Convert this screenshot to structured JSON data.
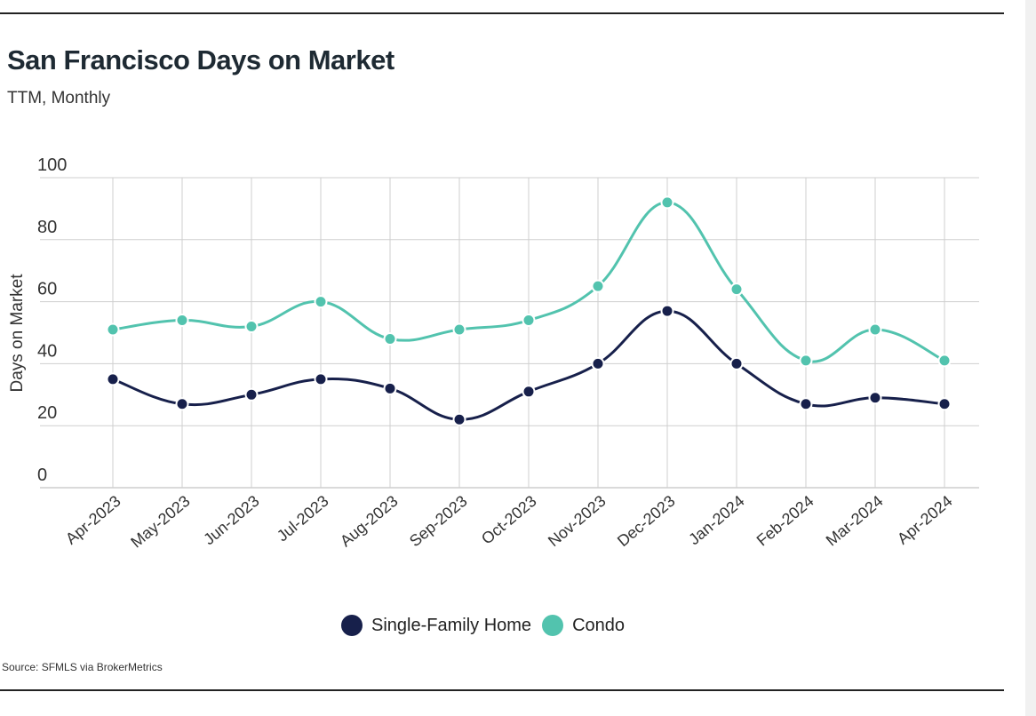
{
  "header": {
    "title": "San Francisco Days on Market",
    "subtitle": "TTM, Monthly"
  },
  "footer": {
    "source": "Source:  SFMLS via BrokerMetrics"
  },
  "colors": {
    "single_family": "#17204b",
    "condo": "#52c3ae",
    "grid": "#cfcfcf",
    "axis_text": "#333333"
  },
  "chart_data": {
    "type": "line",
    "title": "San Francisco Days on Market",
    "subtitle": "TTM, Monthly",
    "xlabel": "",
    "ylabel": "Days on Market",
    "ylim": [
      0,
      100
    ],
    "yticks": [
      0,
      20,
      40,
      60,
      80,
      100
    ],
    "grid": true,
    "smooth": true,
    "legend_position": "bottom-center",
    "categories": [
      "Apr-2023",
      "May-2023",
      "Jun-2023",
      "Jul-2023",
      "Aug-2023",
      "Sep-2023",
      "Oct-2023",
      "Nov-2023",
      "Dec-2023",
      "Jan-2024",
      "Feb-2024",
      "Mar-2024",
      "Apr-2024"
    ],
    "series": [
      {
        "name": "Single-Family Home",
        "color": "#17204b",
        "values": [
          35,
          27,
          30,
          35,
          32,
          22,
          31,
          40,
          57,
          40,
          27,
          29,
          27
        ]
      },
      {
        "name": "Condo",
        "color": "#52c3ae",
        "values": [
          51,
          54,
          52,
          60,
          48,
          51,
          54,
          65,
          92,
          64,
          41,
          51,
          41
        ]
      }
    ]
  }
}
